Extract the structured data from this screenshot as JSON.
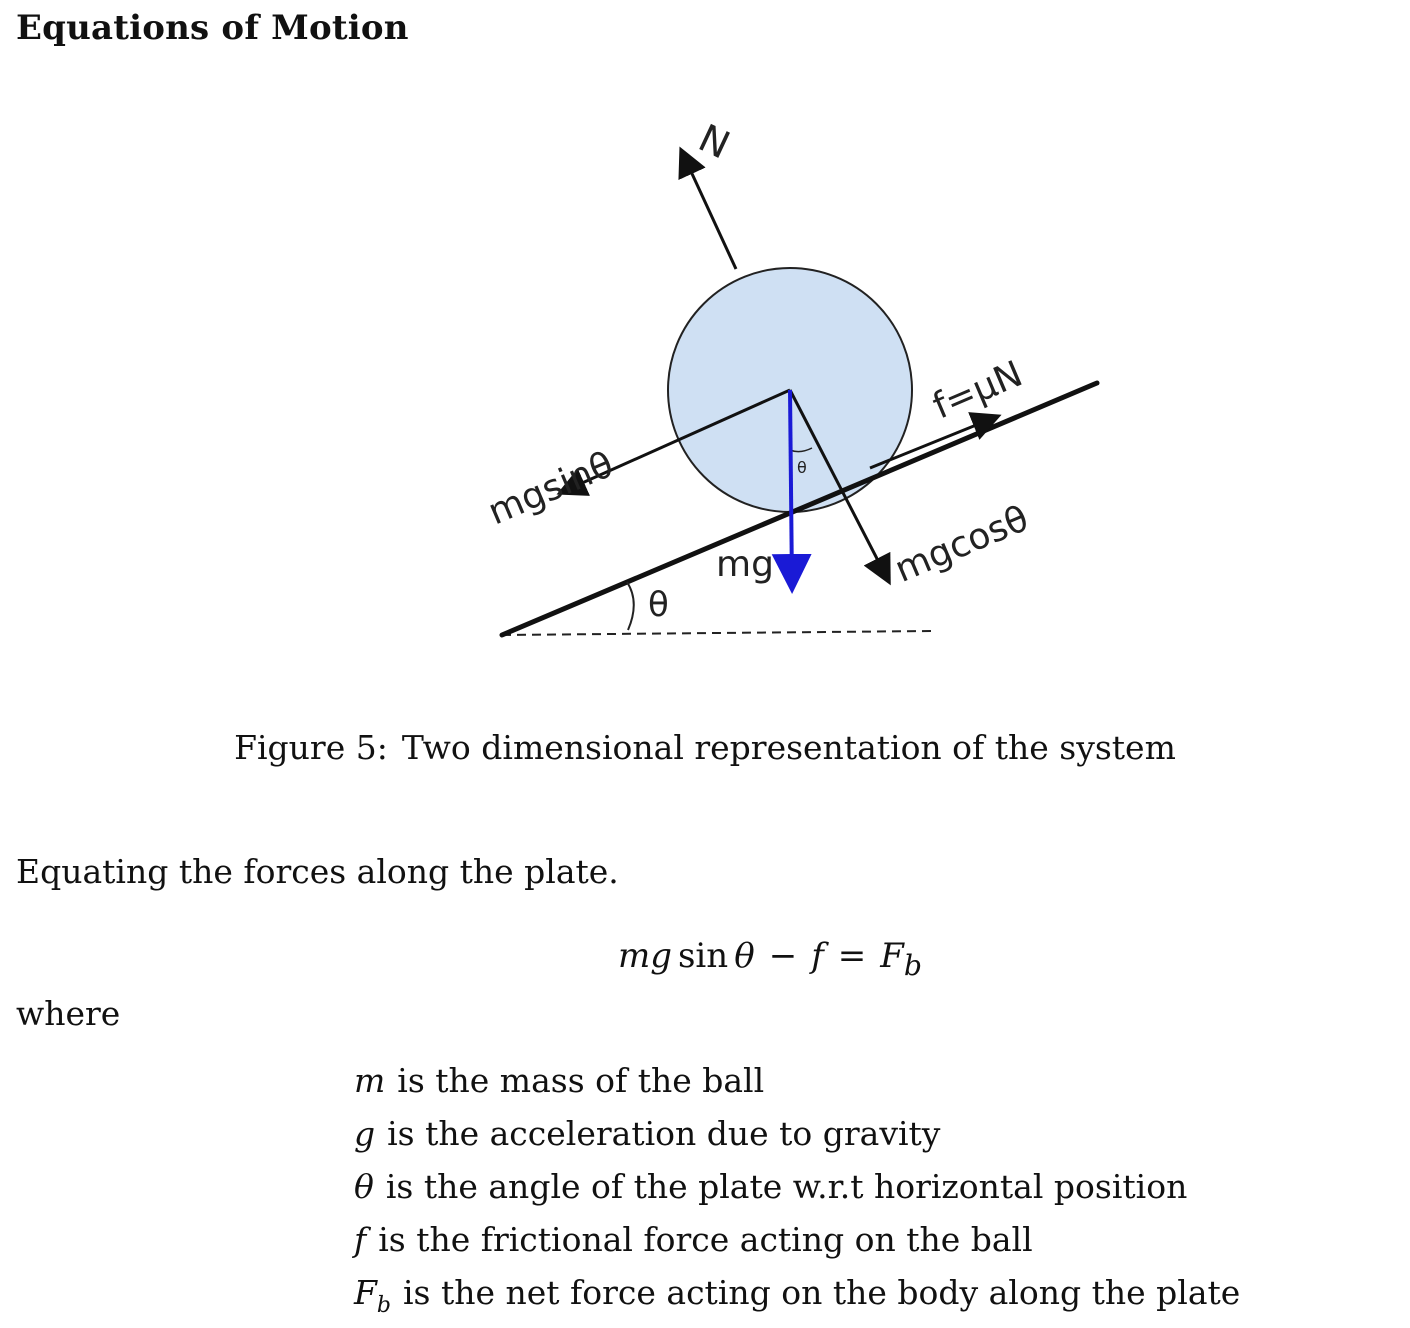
{
  "section": {
    "title": "Equations of Motion"
  },
  "figure": {
    "labels": {
      "normal": "N",
      "friction": "f=μN",
      "mg_sin": "mgsinθ",
      "mg_cos": "mgcosθ",
      "weight": "mg",
      "incline_angle": "θ",
      "inner_angle": "θ"
    },
    "colors": {
      "ball_fill": "#cfe0f3",
      "line": "#111111",
      "weight_arrow": "#1a1ad6"
    },
    "caption_number": "Figure 5:",
    "caption_text": "Two dimensional representation of the system"
  },
  "body": {
    "intro": "Equating the forces along the plate.",
    "where": "where"
  },
  "equation": {
    "m": "m",
    "g": "g",
    "sin": "sin",
    "theta": "θ",
    "minus": "−",
    "f": "f",
    "equals": "=",
    "F": "F",
    "b": "b"
  },
  "definitions": [
    {
      "symbol": "m",
      "sub": "",
      "text": "is the mass of the ball"
    },
    {
      "symbol": "g",
      "sub": "",
      "text": "is the acceleration due to gravity"
    },
    {
      "symbol": "θ",
      "sub": "",
      "text": "is the angle of the plate w.r.t horizontal position"
    },
    {
      "symbol": "f",
      "sub": "",
      "text": "is the frictional force acting on the ball"
    },
    {
      "symbol": "F",
      "sub": "b",
      "text": "is the net force acting on the body along the plate"
    }
  ]
}
